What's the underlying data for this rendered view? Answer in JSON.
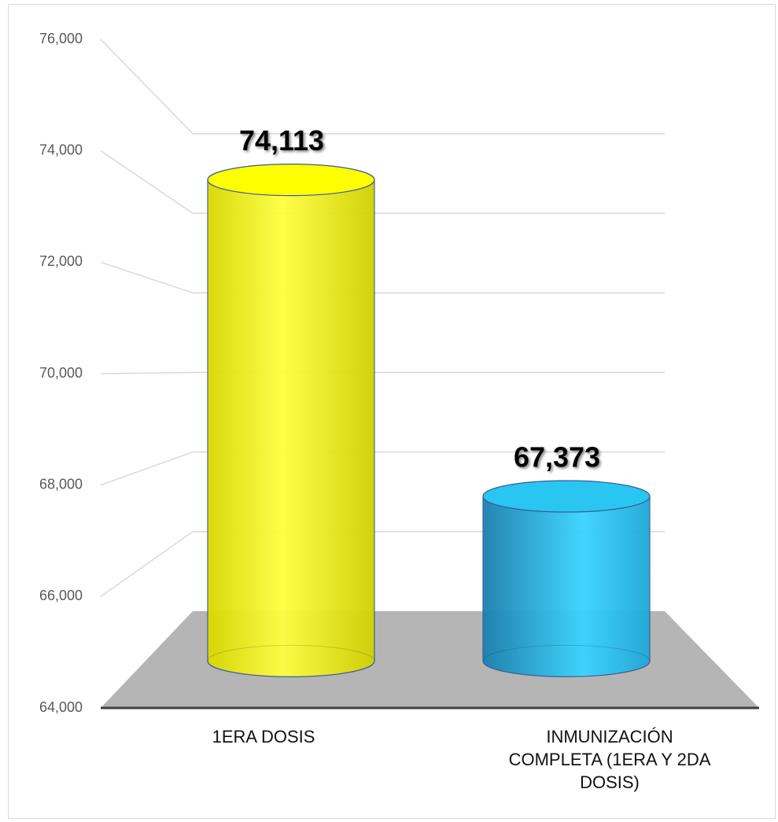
{
  "chart_data": {
    "type": "bar3d",
    "categories": [
      "1ERA DOSIS",
      "INMUNIZACIÓN COMPLETA (1ERA Y 2DA DOSIS)"
    ],
    "values": [
      74113,
      67373
    ],
    "value_labels": [
      "74,113",
      "67,373"
    ],
    "colors": [
      "#ffff00",
      "#29c6f2"
    ],
    "ylim": [
      64000,
      76000
    ],
    "yticks": [
      {
        "value": 64000,
        "label": "64,000"
      },
      {
        "value": 66000,
        "label": "66,000"
      },
      {
        "value": 68000,
        "label": "68,000"
      },
      {
        "value": 70000,
        "label": "70,000"
      },
      {
        "value": 72000,
        "label": "72,000"
      },
      {
        "value": 74000,
        "label": "74,000"
      },
      {
        "value": 76000,
        "label": "76,000"
      }
    ],
    "grid": true
  }
}
